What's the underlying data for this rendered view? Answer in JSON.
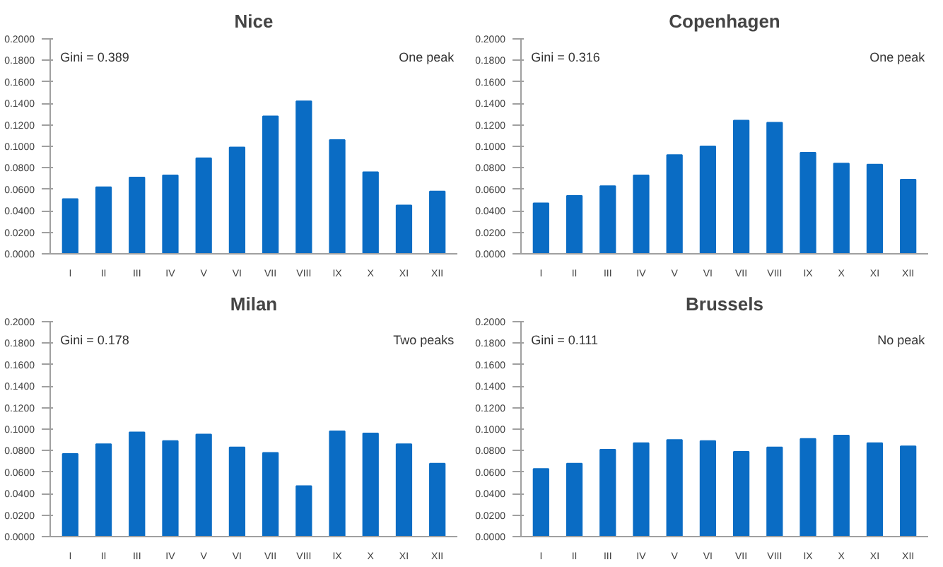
{
  "chart_data": [
    {
      "type": "bar",
      "title": "Nice",
      "categories": [
        "I",
        "II",
        "III",
        "IV",
        "V",
        "VI",
        "VII",
        "VIII",
        "IX",
        "X",
        "XI",
        "XII"
      ],
      "values": [
        0.051,
        0.062,
        0.071,
        0.073,
        0.089,
        0.099,
        0.128,
        0.142,
        0.106,
        0.076,
        0.045,
        0.058
      ],
      "color": "#0a6cc4",
      "ylim": [
        0,
        0.2
      ],
      "yticks": [
        {
          "value": 0,
          "label": "0.0000"
        },
        {
          "value": 0.02,
          "label": "0.0200"
        },
        {
          "value": 0.04,
          "label": "0.0400"
        },
        {
          "value": 0.06,
          "label": "0.0600"
        },
        {
          "value": 0.08,
          "label": "0.0800"
        },
        {
          "value": 0.1,
          "label": "0.1000"
        },
        {
          "value": 0.12,
          "label": "0.1200"
        },
        {
          "value": 0.14,
          "label": "0.1400"
        },
        {
          "value": 0.16,
          "label": "0.1600"
        },
        {
          "value": 0.18,
          "label": "0.1800"
        },
        {
          "value": 0.2,
          "label": "0.2000"
        }
      ],
      "annotations": [
        "Gini = 0.389",
        "One peak"
      ]
    },
    {
      "type": "bar",
      "title": "Copenhagen",
      "categories": [
        "I",
        "II",
        "III",
        "IV",
        "V",
        "VI",
        "VII",
        "VIII",
        "IX",
        "X",
        "XI",
        "XII"
      ],
      "values": [
        0.047,
        0.054,
        0.063,
        0.073,
        0.092,
        0.1,
        0.124,
        0.122,
        0.094,
        0.084,
        0.083,
        0.069
      ],
      "color": "#0a6cc4",
      "ylim": [
        0,
        0.2
      ],
      "yticks": [
        {
          "value": 0,
          "label": "0.0000"
        },
        {
          "value": 0.02,
          "label": "0.0200"
        },
        {
          "value": 0.04,
          "label": "0.0400"
        },
        {
          "value": 0.06,
          "label": "0.0600"
        },
        {
          "value": 0.08,
          "label": "0.0800"
        },
        {
          "value": 0.1,
          "label": "0.1000"
        },
        {
          "value": 0.12,
          "label": "0.1200"
        },
        {
          "value": 0.14,
          "label": "0.1400"
        },
        {
          "value": 0.16,
          "label": "0.1600"
        },
        {
          "value": 0.18,
          "label": "0.1800"
        },
        {
          "value": 0.2,
          "label": "0.2000"
        }
      ],
      "annotations": [
        "Gini = 0.316",
        "One peak"
      ]
    },
    {
      "type": "bar",
      "title": "Milan",
      "categories": [
        "I",
        "II",
        "III",
        "IV",
        "V",
        "VI",
        "VII",
        "VIII",
        "IX",
        "X",
        "XI",
        "XII"
      ],
      "values": [
        0.077,
        0.086,
        0.097,
        0.089,
        0.095,
        0.083,
        0.078,
        0.047,
        0.098,
        0.096,
        0.086,
        0.068
      ],
      "color": "#0a6cc4",
      "ylim": [
        0,
        0.2
      ],
      "yticks": [
        {
          "value": 0,
          "label": "0.0000"
        },
        {
          "value": 0.02,
          "label": "0.0200"
        },
        {
          "value": 0.04,
          "label": "0.0400"
        },
        {
          "value": 0.06,
          "label": "0.0600"
        },
        {
          "value": 0.08,
          "label": "0.0800"
        },
        {
          "value": 0.1,
          "label": "0.1000"
        },
        {
          "value": 0.12,
          "label": "0.1200"
        },
        {
          "value": 0.14,
          "label": "0.1400"
        },
        {
          "value": 0.16,
          "label": "0.1600"
        },
        {
          "value": 0.18,
          "label": "0.1800"
        },
        {
          "value": 0.2,
          "label": "0.2000"
        }
      ],
      "annotations": [
        "Gini = 0.178",
        "Two peaks"
      ]
    },
    {
      "type": "bar",
      "title": "Brussels",
      "categories": [
        "I",
        "II",
        "III",
        "IV",
        "V",
        "VI",
        "VII",
        "VIII",
        "IX",
        "X",
        "XI",
        "XII"
      ],
      "values": [
        0.063,
        0.068,
        0.081,
        0.087,
        0.09,
        0.089,
        0.079,
        0.083,
        0.091,
        0.094,
        0.087,
        0.084
      ],
      "color": "#0a6cc4",
      "ylim": [
        0,
        0.2
      ],
      "yticks": [
        {
          "value": 0,
          "label": "0.0000"
        },
        {
          "value": 0.02,
          "label": "0.0200"
        },
        {
          "value": 0.04,
          "label": "0.0400"
        },
        {
          "value": 0.06,
          "label": "0.0600"
        },
        {
          "value": 0.08,
          "label": "0.0800"
        },
        {
          "value": 0.1,
          "label": "0.1000"
        },
        {
          "value": 0.12,
          "label": "0.1200"
        },
        {
          "value": 0.14,
          "label": "0.1400"
        },
        {
          "value": 0.16,
          "label": "0.1600"
        },
        {
          "value": 0.18,
          "label": "0.1800"
        },
        {
          "value": 0.2,
          "label": "0.2000"
        }
      ],
      "annotations": [
        "Gini = 0.111",
        "No peak"
      ]
    }
  ]
}
